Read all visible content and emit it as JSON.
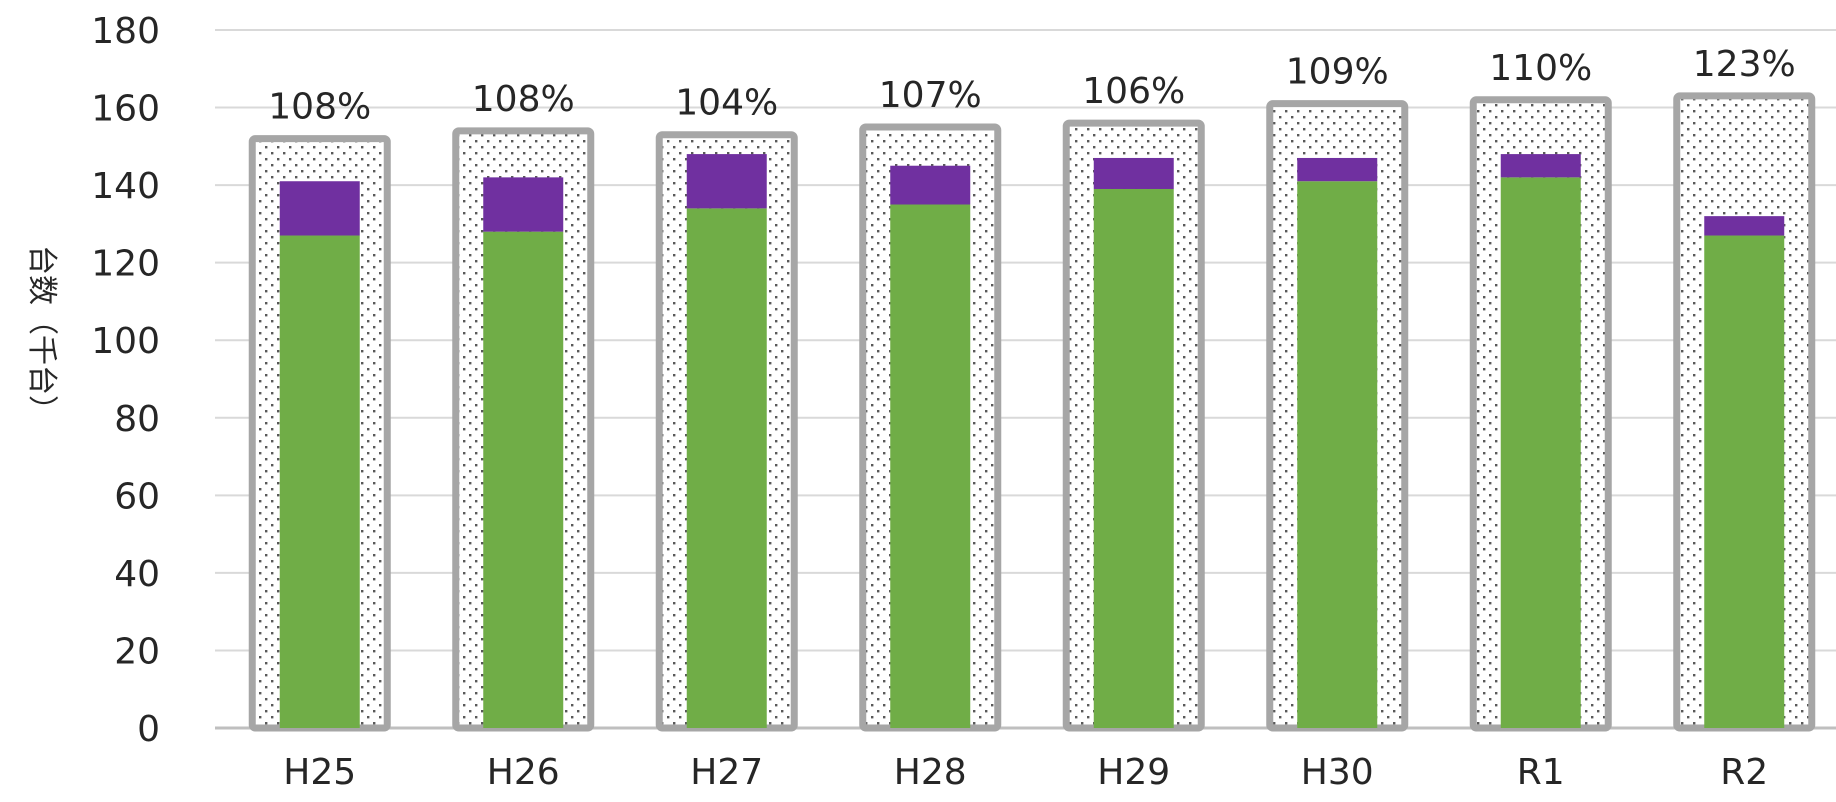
{
  "chart_data": {
    "type": "bar",
    "ylabel": "台数（千台）",
    "ylim": [
      0,
      180
    ],
    "yticks": [
      0,
      20,
      40,
      60,
      80,
      100,
      120,
      140,
      160,
      180
    ],
    "grid": true,
    "categories": [
      "H25",
      "H26",
      "H27",
      "H28",
      "H29",
      "H30",
      "R1",
      "R2"
    ],
    "series": [
      {
        "values": [
          152,
          154,
          153,
          155,
          156,
          161,
          162,
          163
        ],
        "color": "#a6a6a6",
        "style": "dotted-outline"
      },
      {
        "values": [
          127,
          128,
          134,
          135,
          139,
          141,
          142,
          127
        ],
        "color": "#70ad47",
        "style": "stacked-base"
      },
      {
        "values": [
          14,
          14,
          14,
          10,
          8,
          6,
          6,
          5
        ],
        "color": "#7030a0",
        "style": "stacked-top"
      }
    ],
    "data_labels": [
      "108%",
      "108%",
      "104%",
      "107%",
      "106%",
      "109%",
      "110%",
      "123%"
    ]
  }
}
